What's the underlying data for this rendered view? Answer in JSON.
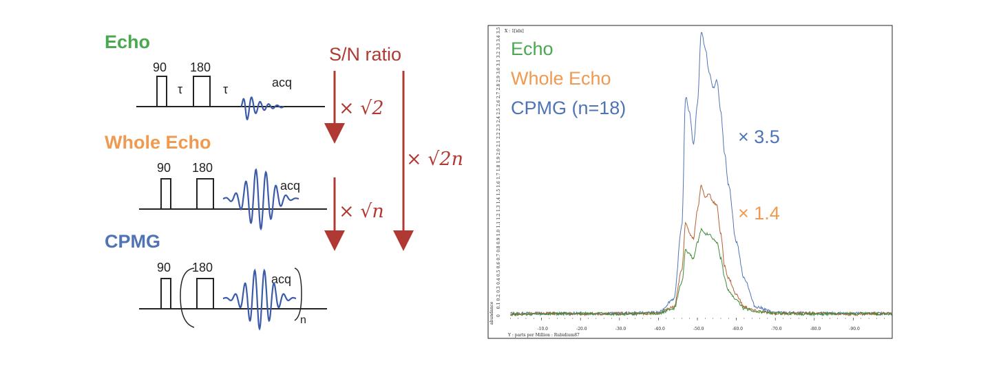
{
  "colors": {
    "echo": "#4aa84f",
    "whole_echo": "#ef9a50",
    "cpmg": "#4f74b6",
    "arrow": "#b03a33",
    "wave": "#3b5ba9",
    "black": "#222222"
  },
  "pulse_sequences": [
    {
      "name": "Echo",
      "pulse1": "90",
      "pulse2": "180",
      "tau1": "τ",
      "tau2": "τ",
      "acq": "acq",
      "suffix": ""
    },
    {
      "name": "Whole Echo",
      "pulse1": "90",
      "pulse2": "180",
      "acq": "acq",
      "suffix": ""
    },
    {
      "name": "CPMG",
      "pulse1": "90",
      "pulse2": "180",
      "acq": "acq",
      "suffix": "n"
    }
  ],
  "sn_section": {
    "title": "S/N ratio",
    "factor_1": "× √2",
    "factor_2": "× √n",
    "factor_total": "× √2n"
  },
  "spectrum": {
    "legend": [
      "Echo",
      "Whole Echo",
      "CPMG (n=18)"
    ],
    "gain_cpmg": "× 3.5",
    "gain_whole": "× 1.4",
    "corner_label": "X : 1[idx]",
    "y_axis_label": "abundance",
    "y_ticks": [
      "0",
      "0.1",
      "0.2",
      "0.3",
      "0.4",
      "0.5",
      "0.6",
      "0.7",
      "0.8",
      "0.9",
      "1.0",
      "1.1",
      "1.2",
      "1.3",
      "1.4",
      "1.5",
      "1.6",
      "1.7",
      "1.8",
      "1.9",
      "2.0",
      "2.1",
      "2.2",
      "2.3",
      "2.4",
      "2.5",
      "2.6",
      "2.7",
      "2.8",
      "2.9",
      "3.0",
      "3.1",
      "3.2",
      "3.3",
      "3.4",
      "3.5"
    ],
    "x_ticks": [
      "-10.0",
      "-20.0",
      "-30.0",
      "-40.0",
      "-50.0",
      "-60.0",
      "-70.0",
      "-80.0",
      "-90.0"
    ],
    "x_axis_label": "Y : parts per Million : Rubidium87"
  },
  "chart_data": {
    "type": "line",
    "x_axis": "ppm",
    "xlim": [
      0,
      -100
    ],
    "ylim": [
      0,
      3.5
    ],
    "series": [
      {
        "name": "CPMG (n=18)",
        "color": "#4f74b6",
        "x": [
          -2,
          -10,
          -20,
          -30,
          -40,
          -44,
          -46,
          -47,
          -48,
          -49,
          -50,
          -51,
          -52,
          -53,
          -54,
          -55,
          -56,
          -57,
          -58,
          -60,
          -62,
          -65,
          -70,
          -80,
          -90,
          -100
        ],
        "y": [
          0.02,
          0.02,
          0.02,
          0.02,
          0.03,
          0.2,
          1.1,
          2.7,
          2.5,
          2.1,
          2.6,
          3.5,
          3.3,
          3.0,
          2.8,
          2.9,
          2.5,
          2.0,
          1.6,
          0.9,
          0.45,
          0.1,
          0.03,
          0.02,
          0.02,
          0.02
        ]
      },
      {
        "name": "Whole Echo",
        "color": "#b5602e",
        "x": [
          -2,
          -10,
          -20,
          -30,
          -40,
          -44,
          -46,
          -47,
          -48,
          -49,
          -50,
          -51,
          -52,
          -53,
          -54,
          -55,
          -56,
          -57,
          -58,
          -60,
          -62,
          -65,
          -70,
          -80,
          -90,
          -100
        ],
        "y": [
          0.01,
          0.02,
          0.01,
          0.02,
          0.02,
          0.1,
          0.55,
          1.15,
          1.0,
          0.95,
          1.3,
          1.6,
          1.45,
          1.5,
          1.4,
          1.35,
          1.0,
          0.6,
          0.45,
          0.25,
          0.1,
          0.05,
          0.02,
          0.02,
          0.01,
          0.02
        ]
      },
      {
        "name": "Echo",
        "color": "#3f8a3a",
        "x": [
          -2,
          -10,
          -20,
          -30,
          -40,
          -44,
          -46,
          -47,
          -48,
          -49,
          -50,
          -51,
          -52,
          -53,
          -54,
          -55,
          -56,
          -57,
          -58,
          -60,
          -62,
          -65,
          -70,
          -80,
          -90,
          -100
        ],
        "y": [
          0.01,
          0.01,
          0.02,
          0.01,
          0.02,
          0.08,
          0.4,
          0.8,
          0.75,
          0.7,
          0.9,
          1.05,
          1.0,
          1.0,
          0.95,
          0.9,
          0.7,
          0.45,
          0.3,
          0.18,
          0.08,
          0.04,
          0.02,
          0.01,
          0.02,
          0.01
        ]
      }
    ]
  }
}
